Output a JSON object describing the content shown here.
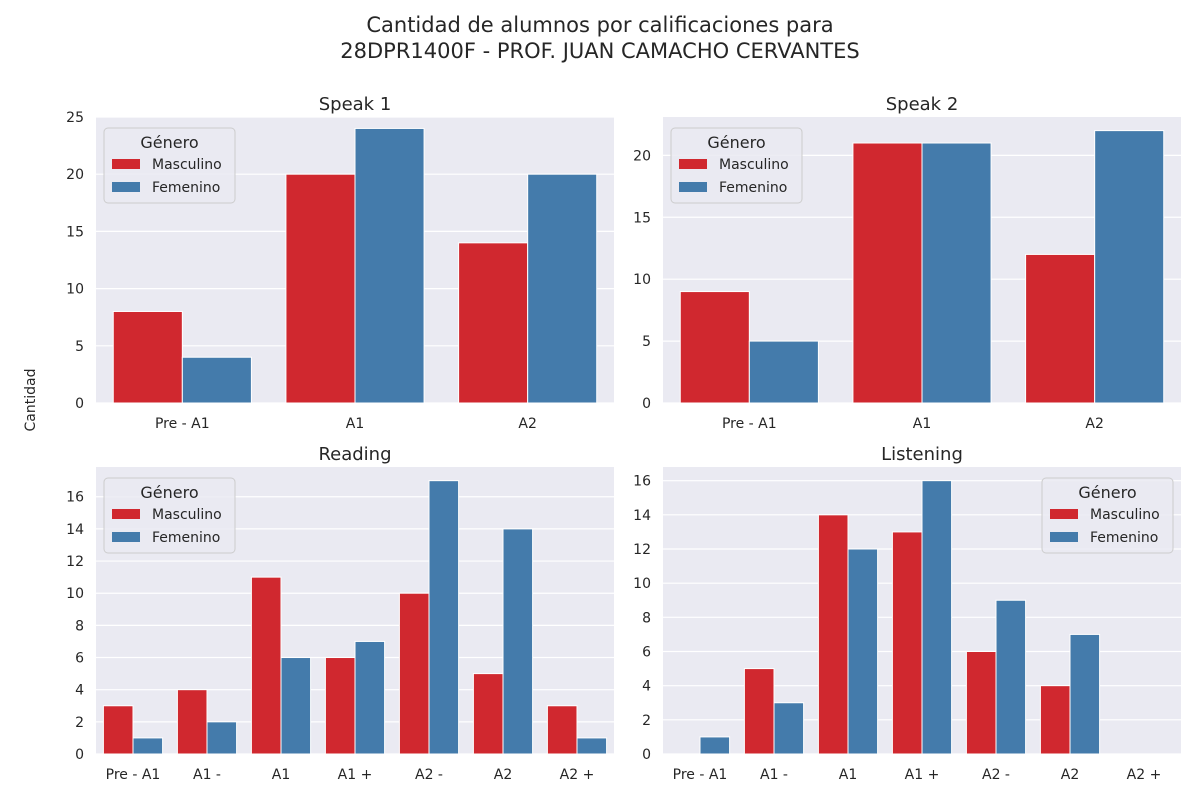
{
  "title_line1": "Cantidad de alumnos por calificaciones para",
  "title_line2": "28DPR1400F - PROF. JUAN CAMACHO CERVANTES",
  "ylabel": "Cantidad",
  "colors": {
    "Masculino": "#d0282f",
    "Femenino": "#447bab"
  },
  "chart_data": [
    {
      "type": "bar",
      "title": "Speak 1",
      "categories": [
        "Pre - A1",
        "A1",
        "A2"
      ],
      "series": [
        {
          "name": "Masculino",
          "values": [
            8,
            20,
            14
          ]
        },
        {
          "name": "Femenino",
          "values": [
            4,
            24,
            20
          ]
        }
      ],
      "ylim": [
        0,
        25
      ],
      "yticks": [
        0,
        5,
        10,
        15,
        20,
        25
      ],
      "legend": {
        "title": "Género",
        "placement": "upper left"
      },
      "grid": true
    },
    {
      "type": "bar",
      "title": "Speak 2",
      "categories": [
        "Pre - A1",
        "A1",
        "A2"
      ],
      "series": [
        {
          "name": "Masculino",
          "values": [
            9,
            21,
            12
          ]
        },
        {
          "name": "Femenino",
          "values": [
            5,
            21,
            22
          ]
        }
      ],
      "ylim": [
        0,
        23.1
      ],
      "yticks": [
        0,
        5,
        10,
        15,
        20
      ],
      "legend": {
        "title": "Género",
        "placement": "upper left"
      },
      "grid": true
    },
    {
      "type": "bar",
      "title": "Reading",
      "categories": [
        "Pre - A1",
        "A1 -",
        "A1",
        "A1 +",
        "A2 -",
        "A2",
        "A2 +"
      ],
      "series": [
        {
          "name": "Masculino",
          "values": [
            3,
            4,
            11,
            6,
            10,
            5,
            3
          ]
        },
        {
          "name": "Femenino",
          "values": [
            1,
            2,
            6,
            7,
            17,
            14,
            1
          ]
        }
      ],
      "ylim": [
        0,
        17.85
      ],
      "yticks": [
        0,
        2,
        4,
        6,
        8,
        10,
        12,
        14,
        16
      ],
      "legend": {
        "title": "Género",
        "placement": "upper left"
      },
      "grid": true
    },
    {
      "type": "bar",
      "title": "Listening",
      "categories": [
        "Pre - A1",
        "A1 -",
        "A1",
        "A1 +",
        "A2 -",
        "A2",
        "A2 +"
      ],
      "series": [
        {
          "name": "Masculino",
          "values": [
            0,
            5,
            14,
            13,
            6,
            4,
            0
          ]
        },
        {
          "name": "Femenino",
          "values": [
            1,
            3,
            12,
            16,
            9,
            7,
            0
          ]
        }
      ],
      "ylim": [
        0,
        16.8
      ],
      "yticks": [
        0,
        2,
        4,
        6,
        8,
        10,
        12,
        14,
        16
      ],
      "legend": {
        "title": "Género",
        "placement": "upper right"
      },
      "grid": true
    }
  ]
}
